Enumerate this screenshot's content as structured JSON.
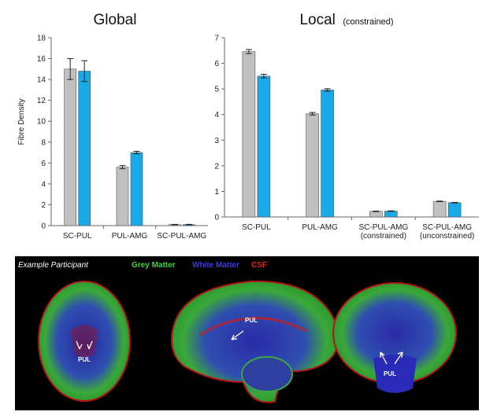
{
  "chart_data": [
    {
      "type": "bar",
      "title": "Global",
      "ylabel": "Fibre Density",
      "ylim": [
        0,
        18
      ],
      "yticks": [
        0,
        2,
        4,
        6,
        8,
        10,
        12,
        14,
        16,
        18
      ],
      "categories": [
        [
          "SC-PUL"
        ],
        [
          "PUL-AMG"
        ],
        [
          "SC-PUL-AMG"
        ]
      ],
      "series": [
        {
          "color": "#c0c0c0",
          "values": [
            15.0,
            5.6,
            0.1
          ],
          "errors": [
            1.0,
            0.15,
            0.02
          ]
        },
        {
          "color": "#1aa9e6",
          "values": [
            14.8,
            7.0,
            0.1
          ],
          "errors": [
            1.0,
            0.12,
            0.02
          ]
        }
      ]
    },
    {
      "type": "bar",
      "title": "Local",
      "title_suffix": "(constrained)",
      "ylim": [
        0,
        7
      ],
      "yticks": [
        0,
        1,
        2,
        3,
        4,
        5,
        6,
        7
      ],
      "categories": [
        [
          "SC-PUL"
        ],
        [
          "PUL-AMG"
        ],
        [
          "SC-PUL-AMG",
          "(constrained)"
        ],
        [
          "SC-PUL-AMG",
          "(unconstrained)"
        ]
      ],
      "series": [
        {
          "color": "#c0c0c0",
          "values": [
            6.46,
            4.03,
            0.22,
            0.61
          ],
          "errors": [
            0.08,
            0.05,
            0.01,
            0.01
          ]
        },
        {
          "color": "#1aa9e6",
          "values": [
            5.5,
            4.96,
            0.23,
            0.56
          ],
          "errors": [
            0.07,
            0.05,
            0.01,
            0.01
          ]
        }
      ]
    }
  ],
  "brain_panel": {
    "participant_label": "Example Participant",
    "legend": [
      {
        "label": "Grey Matter",
        "color": "#3ad63a"
      },
      {
        "label": "White Matter",
        "color": "#3a3ae6"
      },
      {
        "label": "CSF",
        "color": "#e62020"
      }
    ],
    "annotations": [
      "PUL",
      "PUL",
      "PUL"
    ]
  }
}
